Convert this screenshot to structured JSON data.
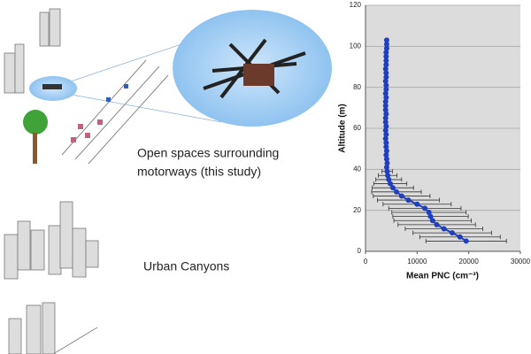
{
  "captions": {
    "open_spaces": [
      "Open spaces surrounding",
      "motorways (this study)"
    ],
    "urban": "Urban Canyons"
  },
  "chart_data": {
    "type": "line",
    "x_label": "Mean PNC (cm⁻³)",
    "y_label": "Altitude (m)",
    "color": "#1f3fbf",
    "grid": true,
    "xlim": [
      0,
      30000
    ],
    "xticks": [
      0,
      10000,
      20000,
      30000
    ],
    "ylim": [
      0,
      120
    ],
    "yticks": [
      0,
      20,
      40,
      60,
      80,
      100,
      120
    ],
    "x": [
      19500,
      18300,
      16800,
      15200,
      13800,
      13000,
      12600,
      12300,
      11500,
      10000,
      8300,
      7000,
      6000,
      5300,
      4800,
      4500,
      4300,
      4200,
      4100,
      4200,
      4100,
      4000,
      4100,
      4000,
      4000,
      3900,
      4000,
      3900,
      4000,
      3900,
      3900,
      4000,
      3900,
      3900,
      3900,
      4000,
      3900,
      4000,
      4000,
      3900,
      4000,
      4000,
      3900,
      4000,
      4000,
      4000,
      4000,
      4100,
      4100,
      4100
    ],
    "y": [
      5,
      7,
      9,
      11,
      13,
      15,
      17,
      19,
      21,
      23,
      25,
      27,
      29,
      31,
      33,
      35,
      37,
      39,
      41,
      43,
      45,
      47,
      49,
      51,
      53,
      55,
      57,
      59,
      61,
      63,
      65,
      67,
      69,
      71,
      73,
      75,
      77,
      79,
      81,
      83,
      85,
      87,
      89,
      91,
      93,
      95,
      97,
      99,
      101,
      103
    ],
    "xerr": [
      7800,
      7800,
      7600,
      7500,
      7500,
      7500,
      7300,
      7200,
      7000,
      6600,
      6000,
      5500,
      4800,
      4000,
      3200,
      2500,
      1800,
      1000,
      null,
      null,
      null,
      null,
      null,
      null,
      null,
      null,
      null,
      null,
      null,
      null,
      null,
      null,
      null,
      null,
      null,
      null,
      null,
      null,
      null,
      null,
      null,
      null,
      null,
      null,
      null,
      null,
      null,
      null,
      null,
      null
    ]
  }
}
